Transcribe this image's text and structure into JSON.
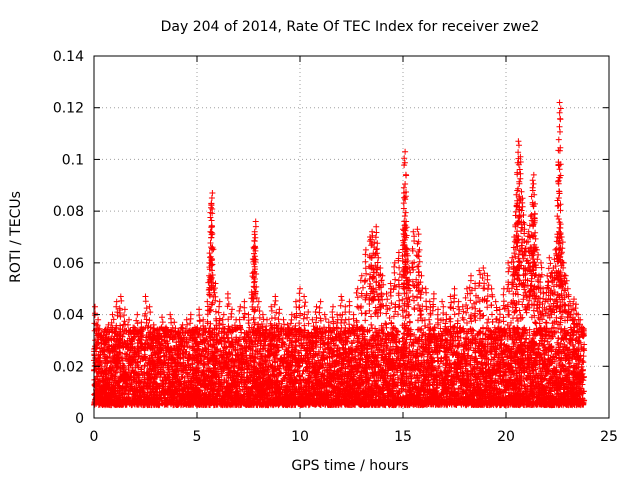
{
  "chart_data": {
    "type": "scatter",
    "title": "Day 204 of 2014, Rate Of TEC Index for receiver zwe2",
    "xlabel": "GPS time / hours",
    "ylabel": "ROTI / TECUs",
    "xlim": [
      0,
      25
    ],
    "ylim": [
      0,
      0.14
    ],
    "xticks": [
      "0",
      "5",
      "10",
      "15",
      "20",
      "25"
    ],
    "xtick_values": [
      0,
      5,
      10,
      15,
      20,
      25
    ],
    "yticks": [
      "0",
      "0.02",
      "0.04",
      "0.06",
      "0.08",
      "0.1",
      "0.12",
      "0.14"
    ],
    "ytick_values": [
      0,
      0.02,
      0.04,
      0.06,
      0.08,
      0.1,
      0.12,
      0.14
    ],
    "grid": true,
    "marker": "+",
    "color": "#ff0000",
    "series": [
      {
        "name": "ROTI",
        "x": [
          0.05,
          0.2,
          0.35,
          0.5,
          0.7,
          0.9,
          1.1,
          1.3,
          1.5,
          1.7,
          1.9,
          2.1,
          2.3,
          2.5,
          2.7,
          2.9,
          3.1,
          3.3,
          3.5,
          3.7,
          3.9,
          4.1,
          4.3,
          4.5,
          4.7,
          4.9,
          5.1,
          5.3,
          5.5,
          5.6,
          5.65,
          5.7,
          5.75,
          5.9,
          6.1,
          6.3,
          6.5,
          6.7,
          6.9,
          7.1,
          7.3,
          7.5,
          7.7,
          7.75,
          7.8,
          7.85,
          8.0,
          8.2,
          8.4,
          8.6,
          8.8,
          9.0,
          9.2,
          9.4,
          9.6,
          9.8,
          10.0,
          10.2,
          10.4,
          10.6,
          10.8,
          11.0,
          11.2,
          11.4,
          11.6,
          11.8,
          12.0,
          12.2,
          12.4,
          12.6,
          12.8,
          13.0,
          13.2,
          13.4,
          13.5,
          13.6,
          13.7,
          13.8,
          13.9,
          14.0,
          14.2,
          14.4,
          14.6,
          14.8,
          15.0,
          15.05,
          15.1,
          15.15,
          15.2,
          15.3,
          15.5,
          15.7,
          15.8,
          15.9,
          16.1,
          16.3,
          16.5,
          16.7,
          16.9,
          17.1,
          17.3,
          17.5,
          17.7,
          17.9,
          18.1,
          18.3,
          18.5,
          18.7,
          18.9,
          19.1,
          19.3,
          19.5,
          19.7,
          19.9,
          20.1,
          20.3,
          20.4,
          20.5,
          20.55,
          20.6,
          20.7,
          20.8,
          20.9,
          21.0,
          21.1,
          21.2,
          21.3,
          21.35,
          21.4,
          21.5,
          21.6,
          21.7,
          21.8,
          21.9,
          22.0,
          22.1,
          22.2,
          22.3,
          22.4,
          22.5,
          22.55,
          22.6,
          22.65,
          22.7,
          22.8,
          22.9,
          23.0,
          23.1,
          23.2,
          23.3,
          23.4,
          23.5,
          23.6,
          23.7
        ],
        "y": [
          0.043,
          0.038,
          0.033,
          0.03,
          0.036,
          0.04,
          0.045,
          0.047,
          0.042,
          0.038,
          0.035,
          0.04,
          0.037,
          0.047,
          0.043,
          0.036,
          0.032,
          0.039,
          0.035,
          0.04,
          0.037,
          0.033,
          0.036,
          0.038,
          0.04,
          0.035,
          0.042,
          0.038,
          0.045,
          0.06,
          0.072,
          0.083,
          0.087,
          0.052,
          0.045,
          0.04,
          0.048,
          0.042,
          0.038,
          0.043,
          0.045,
          0.04,
          0.056,
          0.066,
          0.072,
          0.076,
          0.045,
          0.04,
          0.038,
          0.043,
          0.047,
          0.042,
          0.038,
          0.036,
          0.04,
          0.045,
          0.05,
          0.047,
          0.041,
          0.038,
          0.043,
          0.045,
          0.04,
          0.037,
          0.043,
          0.04,
          0.047,
          0.043,
          0.045,
          0.04,
          0.05,
          0.055,
          0.065,
          0.07,
          0.072,
          0.068,
          0.074,
          0.062,
          0.058,
          0.055,
          0.048,
          0.052,
          0.06,
          0.064,
          0.073,
          0.087,
          0.103,
          0.076,
          0.065,
          0.058,
          0.072,
          0.073,
          0.065,
          0.055,
          0.05,
          0.045,
          0.048,
          0.042,
          0.045,
          0.04,
          0.047,
          0.05,
          0.045,
          0.043,
          0.05,
          0.055,
          0.052,
          0.057,
          0.058,
          0.055,
          0.05,
          0.045,
          0.042,
          0.05,
          0.06,
          0.062,
          0.07,
          0.082,
          0.088,
          0.107,
          0.101,
          0.085,
          0.075,
          0.068,
          0.072,
          0.078,
          0.088,
          0.094,
          0.079,
          0.065,
          0.055,
          0.06,
          0.05,
          0.045,
          0.055,
          0.062,
          0.056,
          0.058,
          0.065,
          0.07,
          0.098,
          0.122,
          0.075,
          0.07,
          0.06,
          0.055,
          0.05,
          0.045,
          0.042,
          0.046,
          0.044,
          0.04,
          0.038,
          0.035
        ]
      }
    ],
    "baseline_band": {
      "x_range": [
        0,
        23.8
      ],
      "y_min": 0.005,
      "y_max_typical": 0.035
    }
  }
}
